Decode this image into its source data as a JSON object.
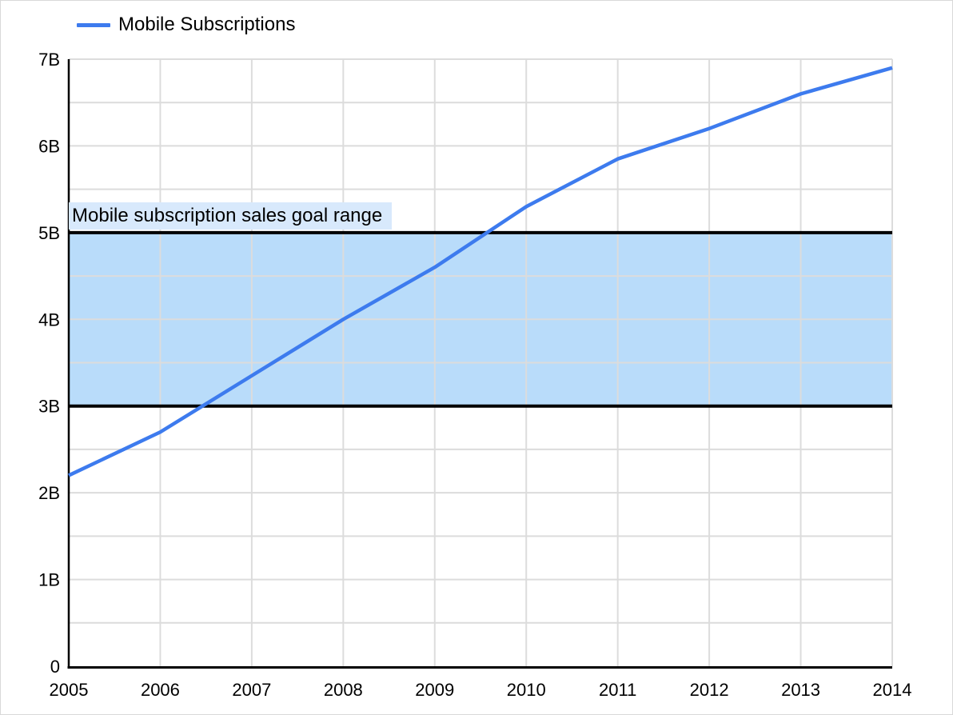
{
  "legend": {
    "label": "Mobile Subscriptions"
  },
  "colors": {
    "series": "#3d7bee",
    "band_fill": "#b9dcfa",
    "band_border": "#000000",
    "band_label_bg": "#d8e9fc",
    "gridline": "#dcdcdc",
    "axis": "#000000",
    "text": "#000000"
  },
  "chart_data": {
    "type": "line",
    "x": [
      2005,
      2006,
      2007,
      2008,
      2009,
      2010,
      2011,
      2012,
      2013,
      2014
    ],
    "series": [
      {
        "name": "Mobile Subscriptions",
        "values": [
          2.2,
          2.7,
          3.35,
          4.0,
          4.6,
          5.3,
          5.85,
          6.2,
          6.6,
          6.9
        ]
      }
    ],
    "units": "billions",
    "ylim": [
      0,
      7
    ],
    "y_minor_step": 0.5,
    "y_ticks": [
      {
        "value": 0,
        "label": "0"
      },
      {
        "value": 1,
        "label": "1B"
      },
      {
        "value": 2,
        "label": "2B"
      },
      {
        "value": 3,
        "label": "3B"
      },
      {
        "value": 4,
        "label": "4B"
      },
      {
        "value": 5,
        "label": "5B"
      },
      {
        "value": 6,
        "label": "6B"
      },
      {
        "value": 7,
        "label": "7B"
      }
    ],
    "band": {
      "from": 3,
      "to": 5,
      "label": "Mobile subscription sales goal range"
    },
    "grid": true,
    "legend_position": "top-left"
  }
}
